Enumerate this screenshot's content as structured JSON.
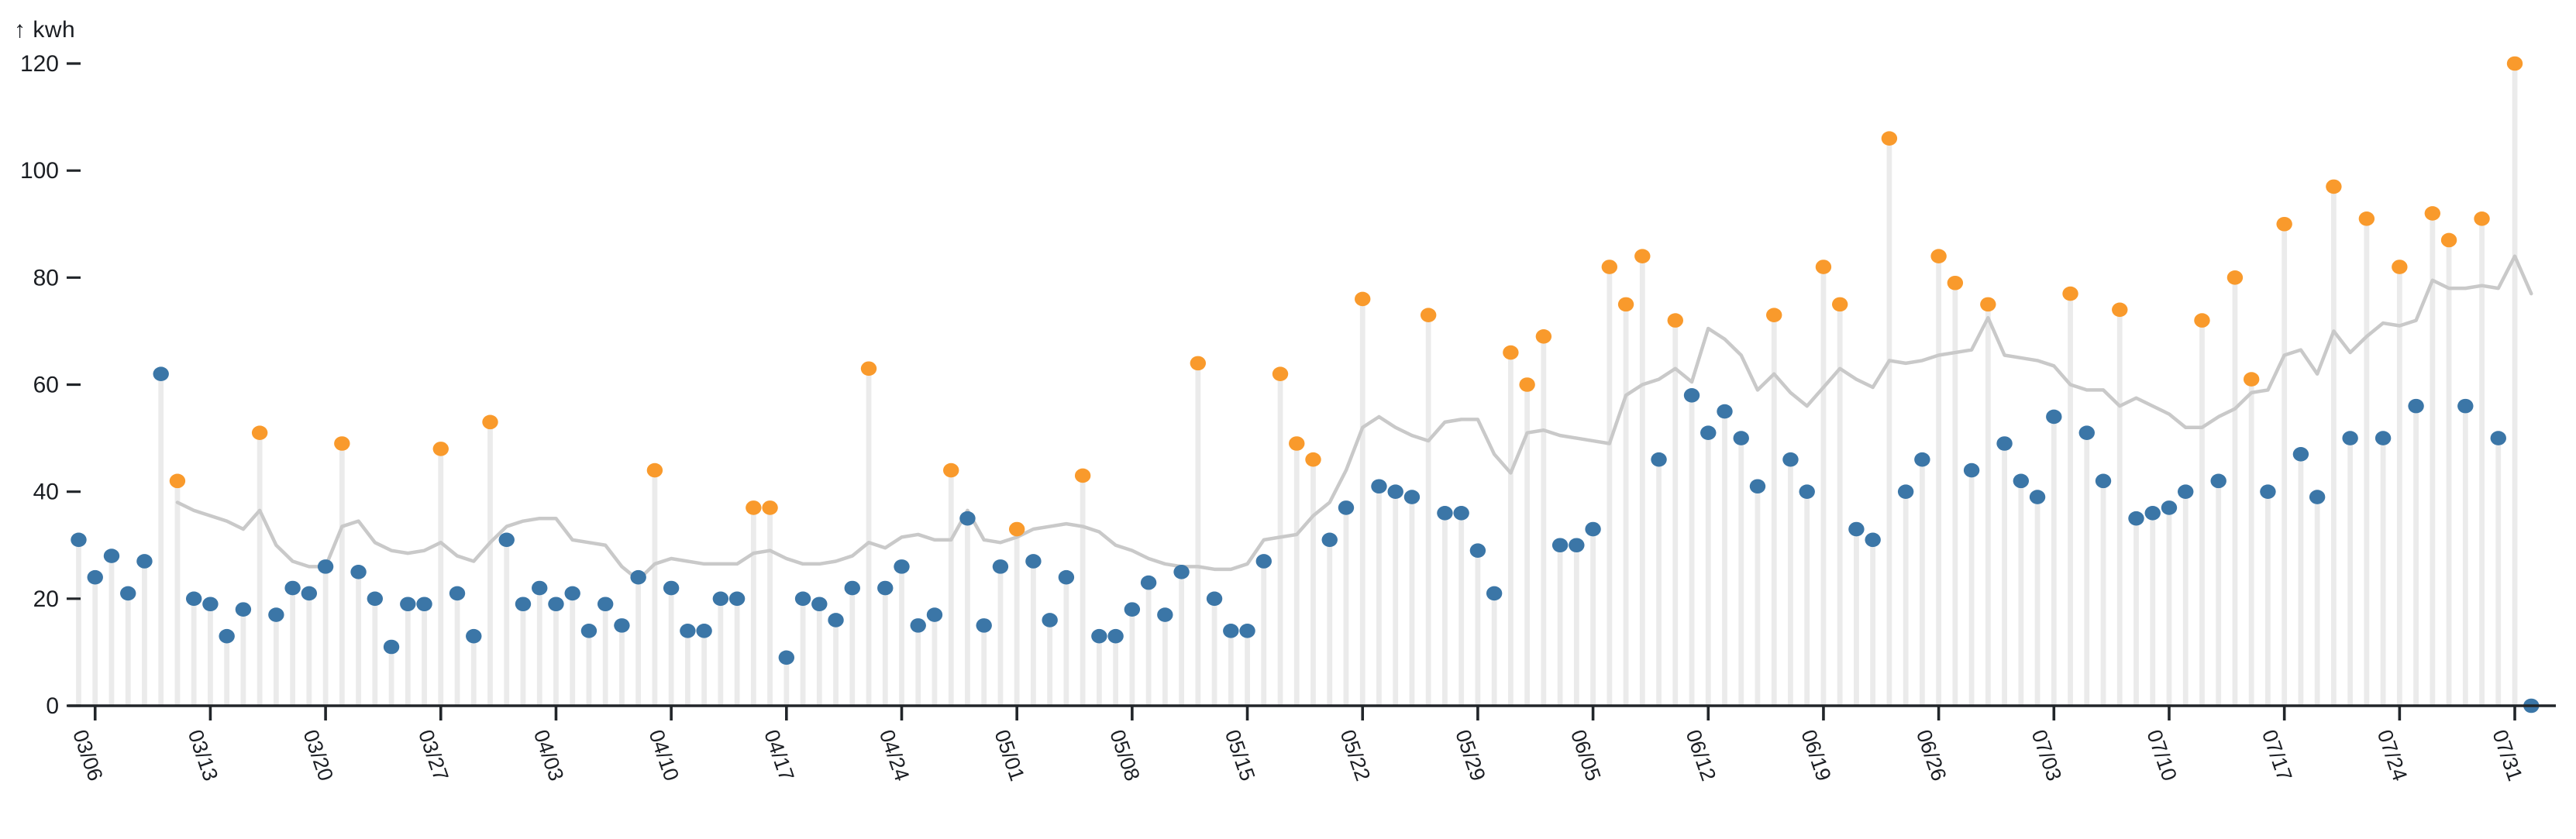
{
  "chart_data": {
    "type": "scatter",
    "subtype": "lollipop-with-trend-line",
    "title": "",
    "xlabel": "",
    "ylabel": "kwh",
    "ylabel_display": "↑ kwh",
    "ylim": [
      0,
      124
    ],
    "yticks": [
      0,
      20,
      40,
      60,
      80,
      100,
      120
    ],
    "grid": false,
    "legend_position": "none",
    "x_tick_labels": [
      "03/06",
      "03/13",
      "03/20",
      "03/27",
      "04/03",
      "04/10",
      "04/17",
      "04/24",
      "05/01",
      "05/08",
      "05/15",
      "05/22",
      "05/29",
      "06/05",
      "06/12",
      "06/19",
      "06/26",
      "07/03",
      "07/10",
      "07/17",
      "07/24",
      "07/31"
    ],
    "dates": [
      "03/05",
      "03/06",
      "03/07",
      "03/08",
      "03/09",
      "03/10",
      "03/11",
      "03/12",
      "03/13",
      "03/14",
      "03/15",
      "03/16",
      "03/17",
      "03/18",
      "03/19",
      "03/20",
      "03/21",
      "03/22",
      "03/23",
      "03/24",
      "03/25",
      "03/26",
      "03/27",
      "03/28",
      "03/29",
      "03/30",
      "03/31",
      "04/01",
      "04/02",
      "04/03",
      "04/04",
      "04/05",
      "04/06",
      "04/07",
      "04/08",
      "04/09",
      "04/10",
      "04/11",
      "04/12",
      "04/13",
      "04/14",
      "04/15",
      "04/16",
      "04/17",
      "04/18",
      "04/19",
      "04/20",
      "04/21",
      "04/22",
      "04/23",
      "04/24",
      "04/25",
      "04/26",
      "04/27",
      "04/28",
      "04/29",
      "04/30",
      "05/01",
      "05/02",
      "05/03",
      "05/04",
      "05/05",
      "05/06",
      "05/07",
      "05/08",
      "05/09",
      "05/10",
      "05/11",
      "05/12",
      "05/13",
      "05/14",
      "05/15",
      "05/16",
      "05/17",
      "05/18",
      "05/19",
      "05/20",
      "05/21",
      "05/22",
      "05/23",
      "05/24",
      "05/25",
      "05/26",
      "05/27",
      "05/28",
      "05/29",
      "05/30",
      "05/31",
      "06/01",
      "06/02",
      "06/03",
      "06/04",
      "06/05",
      "06/06",
      "06/07",
      "06/08",
      "06/09",
      "06/10",
      "06/11",
      "06/12",
      "06/13",
      "06/14",
      "06/15",
      "06/16",
      "06/17",
      "06/18",
      "06/19",
      "06/20",
      "06/21",
      "06/22",
      "06/23",
      "06/24",
      "06/25",
      "06/26",
      "06/27",
      "06/28",
      "06/29",
      "06/30",
      "07/01",
      "07/02",
      "07/03",
      "07/04",
      "07/05",
      "07/06",
      "07/07",
      "07/08",
      "07/09",
      "07/10",
      "07/11",
      "07/12",
      "07/13",
      "07/14",
      "07/15",
      "07/16",
      "07/17",
      "07/18",
      "07/19",
      "07/20",
      "07/21",
      "07/22",
      "07/23",
      "07/24",
      "07/25",
      "07/26",
      "07/27",
      "07/28",
      "07/29",
      "07/30",
      "07/31",
      "08/01"
    ],
    "values": [
      31,
      24,
      28,
      21,
      27,
      62,
      42,
      20,
      19,
      13,
      18,
      51,
      17,
      22,
      21,
      26,
      49,
      25,
      20,
      11,
      19,
      19,
      48,
      21,
      13,
      53,
      31,
      19,
      22,
      19,
      21,
      14,
      19,
      15,
      24,
      44,
      22,
      14,
      14,
      20,
      20,
      37,
      37,
      9,
      20,
      19,
      16,
      22,
      63,
      22,
      26,
      15,
      17,
      44,
      35,
      15,
      26,
      33,
      27,
      16,
      24,
      43,
      13,
      13,
      18,
      23,
      17,
      25,
      64,
      20,
      14,
      14,
      27,
      62,
      49,
      46,
      31,
      37,
      76,
      41,
      40,
      39,
      73,
      36,
      36,
      29,
      21,
      66,
      60,
      69,
      30,
      30,
      33,
      82,
      75,
      84,
      46,
      72,
      58,
      51,
      55,
      50,
      41,
      73,
      46,
      40,
      82,
      75,
      33,
      31,
      106,
      40,
      46,
      84,
      79,
      44,
      75,
      49,
      42,
      39,
      54,
      77,
      51,
      42,
      74,
      35,
      36,
      37,
      40,
      72,
      42,
      80,
      61,
      40,
      90,
      47,
      39,
      97,
      50,
      91,
      50,
      82,
      56,
      92,
      87,
      56,
      91,
      50,
      120,
      0
    ],
    "point_categories_legend": {
      "0": "normal (blue dot)",
      "1": "high / above-trend (orange dot)"
    },
    "point_categories": [
      0,
      0,
      0,
      0,
      0,
      0,
      1,
      0,
      0,
      0,
      0,
      1,
      0,
      0,
      0,
      0,
      1,
      0,
      0,
      0,
      0,
      0,
      1,
      0,
      0,
      1,
      0,
      0,
      0,
      0,
      0,
      0,
      0,
      0,
      0,
      1,
      0,
      0,
      0,
      0,
      0,
      1,
      1,
      0,
      0,
      0,
      0,
      0,
      1,
      0,
      0,
      0,
      0,
      1,
      0,
      0,
      0,
      1,
      0,
      0,
      0,
      1,
      0,
      0,
      0,
      0,
      0,
      0,
      1,
      0,
      0,
      0,
      0,
      1,
      1,
      1,
      0,
      0,
      1,
      0,
      0,
      0,
      1,
      0,
      0,
      0,
      0,
      1,
      1,
      1,
      0,
      0,
      0,
      1,
      1,
      1,
      0,
      1,
      0,
      0,
      0,
      0,
      0,
      1,
      0,
      0,
      1,
      1,
      0,
      0,
      1,
      0,
      0,
      1,
      1,
      0,
      1,
      0,
      0,
      0,
      0,
      1,
      0,
      0,
      1,
      0,
      0,
      0,
      0,
      1,
      0,
      1,
      1,
      0,
      1,
      0,
      0,
      1,
      0,
      1,
      0,
      1,
      0,
      1,
      1,
      0,
      1,
      0,
      1,
      0
    ],
    "trend_line": {
      "name": "rolling-average-line",
      "start_date": "03/11",
      "values": [
        38,
        36.5,
        35.5,
        34.5,
        33,
        36.5,
        30,
        27,
        26,
        26,
        33.5,
        34.5,
        30.5,
        29,
        28.5,
        29,
        30.5,
        28,
        27,
        30.5,
        33.5,
        34.5,
        35,
        35,
        31,
        30.5,
        30,
        26,
        23.5,
        26.5,
        27.5,
        27,
        26.5,
        26.5,
        26.5,
        28.5,
        29,
        27.5,
        26.5,
        26.5,
        27,
        28,
        30.5,
        29.5,
        31.5,
        32,
        31,
        31,
        36.5,
        31,
        30.5,
        31.5,
        33,
        33.5,
        34,
        33.5,
        32.5,
        30,
        29,
        27.5,
        26.5,
        26,
        26,
        25.5,
        25.5,
        26.5,
        31,
        31.5,
        32,
        35.5,
        38,
        44,
        52,
        54,
        52,
        50.5,
        49.5,
        53,
        53.5,
        53.5,
        47,
        43.5,
        51,
        51.5,
        50.5,
        50,
        49.5,
        49,
        58,
        60,
        61,
        63,
        60.5,
        70.5,
        68.5,
        65.5,
        59,
        62,
        58.5,
        56,
        59.5,
        63,
        61,
        59.5,
        64.5,
        64,
        64.5,
        65.5,
        66,
        66.5,
        72.5,
        65.5,
        65,
        64.5,
        63.5,
        60,
        59,
        59,
        56,
        57.5,
        56,
        54.5,
        52,
        52,
        54,
        55.5,
        58.5,
        59,
        65.5,
        66.5,
        62,
        70,
        66,
        69,
        71.5,
        71,
        72,
        79.5,
        78,
        78,
        78.5,
        78,
        84,
        77
      ]
    },
    "colors": {
      "normal_dot": "#3b76a7",
      "high_dot": "#f99a2c",
      "trend_line": "#c9c9c9",
      "stem": "#ebebeb",
      "axis": "#212529",
      "text": "#1b1e23",
      "background": "#ffffff"
    }
  }
}
